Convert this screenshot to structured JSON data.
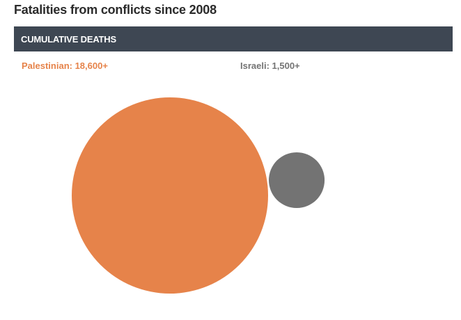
{
  "chart_data": {
    "type": "bubble",
    "title": "Fatalities from conflicts since 2008",
    "subtitle": "CUMULATIVE DEATHS",
    "series": [
      {
        "name": "Palestinian",
        "label": "Palestinian: 18,600+",
        "value": 18600,
        "color": "#e6834a"
      },
      {
        "name": "Israeli",
        "label": "Israeli: 1,500+",
        "value": 1500,
        "color": "#737373"
      }
    ],
    "header_color": "#3e4753"
  }
}
